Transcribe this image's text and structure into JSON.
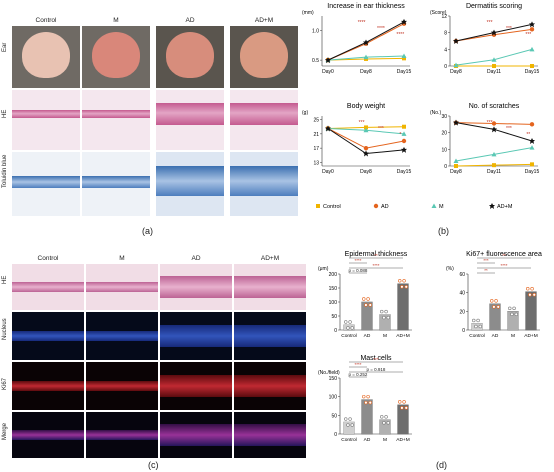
{
  "panel_a": {
    "label": "(a)",
    "columns": [
      "Control",
      "M",
      "AD",
      "AD+M"
    ],
    "rows": [
      "Ear",
      "HE",
      "Toluidin blue"
    ]
  },
  "panel_b": {
    "label": "(b)",
    "legend": [
      {
        "name": "Control",
        "color": "#f0b400",
        "marker": "square"
      },
      {
        "name": "AD",
        "color": "#e4641e",
        "marker": "circle"
      },
      {
        "name": "M",
        "color": "#5ac8b4",
        "marker": "triangle"
      },
      {
        "name": "AD+M",
        "color": "#111111",
        "marker": "star"
      }
    ]
  },
  "panel_c": {
    "label": "(c)",
    "columns": [
      "Control",
      "M",
      "AD",
      "AD+M"
    ],
    "rows": [
      "HE",
      "Nucleus",
      "Ki67",
      "Merge"
    ]
  },
  "panel_d": {
    "label": "(d)"
  },
  "chart_data": [
    {
      "type": "line",
      "title": "Increase in ear thickness",
      "ylabel": "(mm)",
      "categories": [
        "Day0",
        "Day8",
        "Day15"
      ],
      "ylim": [
        0.4,
        1.25
      ],
      "yticks": [
        "0.5",
        "1.0"
      ],
      "annotations": [
        "****",
        "****",
        "****"
      ],
      "series": [
        {
          "name": "Control",
          "values": [
            0.5,
            0.52,
            0.53
          ]
        },
        {
          "name": "AD",
          "values": [
            0.5,
            0.78,
            1.12
          ]
        },
        {
          "name": "M",
          "values": [
            0.5,
            0.55,
            0.57
          ]
        },
        {
          "name": "AD+M",
          "values": [
            0.5,
            0.8,
            1.15
          ]
        }
      ]
    },
    {
      "type": "line",
      "title": "Dermatitis scoring",
      "ylabel": "(Score)",
      "categories": [
        "Day8",
        "Day11",
        "Day15"
      ],
      "ylim": [
        0,
        12
      ],
      "yticks": [
        "0",
        "4",
        "8",
        "12"
      ],
      "annotations": [
        "***",
        "***",
        "***"
      ],
      "series": [
        {
          "name": "Control",
          "values": [
            0,
            0,
            0
          ]
        },
        {
          "name": "AD",
          "values": [
            6,
            7.5,
            8.8
          ]
        },
        {
          "name": "M",
          "values": [
            0.2,
            1.5,
            4
          ]
        },
        {
          "name": "AD+M",
          "values": [
            6,
            8,
            10
          ]
        }
      ]
    },
    {
      "type": "line",
      "title": "Body weight",
      "ylabel": "(g)",
      "categories": [
        "Day0",
        "Day8",
        "Day15"
      ],
      "ylim": [
        12,
        26
      ],
      "yticks": [
        "13",
        "17",
        "21",
        "25"
      ],
      "annotations": [
        "***",
        "***",
        "*"
      ],
      "series": [
        {
          "name": "Control",
          "values": [
            22.5,
            22.8,
            23.0
          ]
        },
        {
          "name": "AD",
          "values": [
            22.5,
            17.0,
            19.0
          ]
        },
        {
          "name": "M",
          "values": [
            22.5,
            22.0,
            21.0
          ]
        },
        {
          "name": "AD+M",
          "values": [
            22.5,
            15.5,
            16.5
          ]
        }
      ]
    },
    {
      "type": "line",
      "title": "No. of scratches",
      "ylabel": "(No.)",
      "categories": [
        "Day8",
        "Day11",
        "Day15"
      ],
      "ylim": [
        0,
        30
      ],
      "yticks": [
        "0",
        "10",
        "20",
        "30"
      ],
      "annotations": [
        "***",
        "***",
        "**"
      ],
      "series": [
        {
          "name": "Control",
          "values": [
            0,
            0.5,
            1
          ]
        },
        {
          "name": "AD",
          "values": [
            26,
            25.5,
            25
          ]
        },
        {
          "name": "M",
          "values": [
            3,
            7,
            11
          ]
        },
        {
          "name": "AD+M",
          "values": [
            26,
            22,
            15
          ]
        }
      ]
    },
    {
      "type": "bar",
      "title": "Epidermal thickness",
      "ylabel": "(μm)",
      "categories": [
        "Control",
        "AD",
        "M",
        "AD+M"
      ],
      "ylim": [
        0,
        200
      ],
      "yticks": [
        "0",
        "50",
        "100",
        "150",
        "200"
      ],
      "values": [
        18,
        100,
        55,
        165
      ],
      "annotations": [
        "p = 0.088",
        "****",
        "****",
        "**"
      ]
    },
    {
      "type": "bar",
      "title": "Ki67+ fluorescence area",
      "ylabel": "(%)",
      "categories": [
        "Control",
        "AD",
        "M",
        "AD+M"
      ],
      "ylim": [
        0,
        60
      ],
      "yticks": [
        "0",
        "20",
        "40",
        "60"
      ],
      "values": [
        7,
        28,
        20,
        41
      ],
      "annotations": [
        "**",
        "****",
        "***",
        "**"
      ]
    },
    {
      "type": "bar",
      "title": "Mast cells",
      "ylabel": "(No./field)",
      "categories": [
        "Control",
        "AD",
        "M",
        "AD+M"
      ],
      "ylim": [
        0,
        150
      ],
      "yticks": [
        "0",
        "50",
        "100",
        "150"
      ],
      "values": [
        32,
        92,
        38,
        78
      ],
      "annotations": [
        "p = 0.252",
        "p = 0.918",
        "****",
        "***"
      ]
    }
  ]
}
